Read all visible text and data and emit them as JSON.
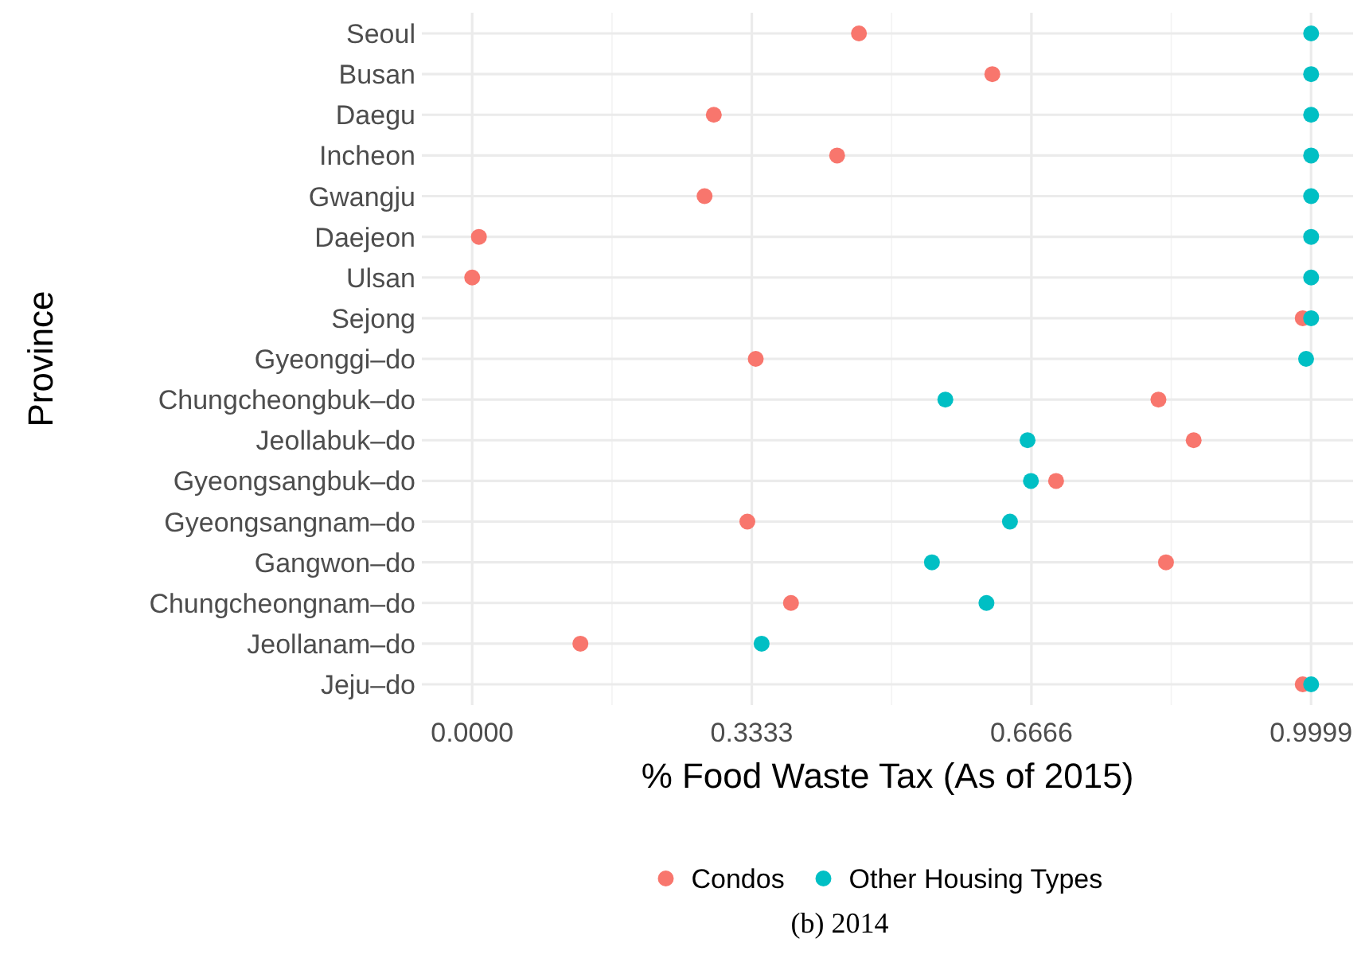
{
  "chart_data": {
    "type": "scatter",
    "xlabel": "% Food Waste Tax (As of 2015)",
    "ylabel": "Province",
    "orientation": "horizontal",
    "categories": [
      "Seoul",
      "Busan",
      "Daegu",
      "Incheon",
      "Gwangju",
      "Daejeon",
      "Ulsan",
      "Sejong",
      "Gyeonggi–do",
      "Chungcheongbuk–do",
      "Jeollabuk–do",
      "Gyeongsangbuk–do",
      "Gyeongsangnam–do",
      "Gangwon–do",
      "Chungcheongnam–do",
      "Jeollanam–do",
      "Jeju–do"
    ],
    "series": [
      {
        "name": "Condos",
        "color": "#f8766d",
        "values": [
          0.461,
          0.62,
          0.288,
          0.435,
          0.277,
          0.008,
          0,
          0.99,
          0.338,
          0.818,
          0.86,
          0.696,
          0.328,
          0.827,
          0.38,
          0.129,
          0.99
        ]
      },
      {
        "name": "Other Housing Types",
        "color": "#00bfc4",
        "values": [
          1,
          1,
          1,
          1,
          1,
          1,
          1,
          1,
          0.994,
          0.564,
          0.662,
          0.666,
          0.641,
          0.548,
          0.613,
          0.345,
          1
        ]
      }
    ],
    "xlim": [
      -0.06,
      1.05
    ],
    "xticks": [
      {
        "value": 0,
        "label": "0.0000"
      },
      0.3333,
      0.6666,
      0.9999
    ],
    "grid": true,
    "legend": "bottom",
    "marker": "circle",
    "annotations": [
      "(b) 2014"
    ]
  }
}
